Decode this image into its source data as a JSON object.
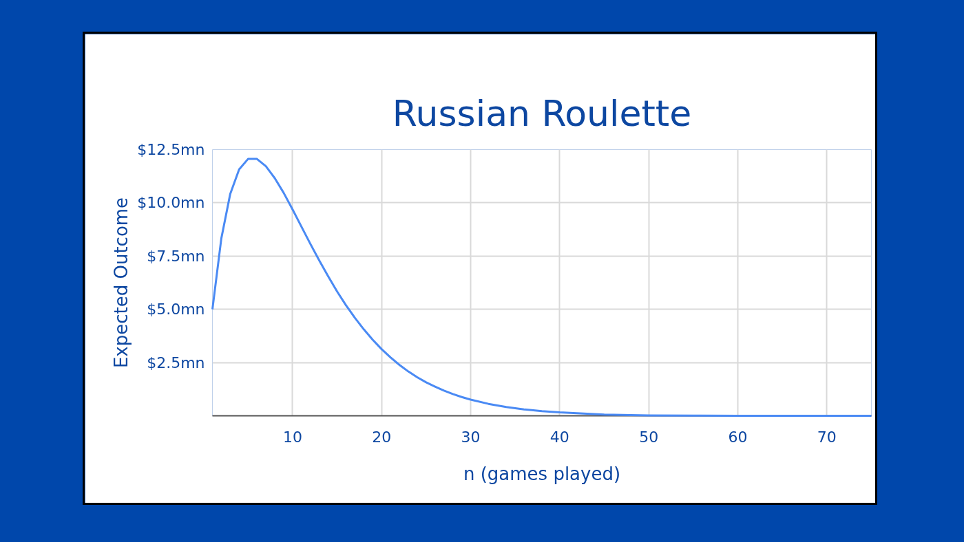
{
  "chart_data": {
    "type": "line",
    "title": "Russian Roulette",
    "xlabel": "n (games played)",
    "ylabel": "Expected Outcome",
    "x": [
      1,
      2,
      3,
      4,
      5,
      6,
      7,
      8,
      9,
      10,
      11,
      12,
      13,
      14,
      15,
      16,
      17,
      18,
      19,
      20,
      21,
      22,
      23,
      24,
      25,
      26,
      27,
      28,
      29,
      30,
      32,
      34,
      36,
      38,
      40,
      45,
      50,
      55,
      60,
      65,
      70,
      75
    ],
    "series": [
      {
        "color": "#4a8af4",
        "values": [
          5.0,
          8.33,
          10.42,
          11.57,
          12.06,
          12.06,
          11.72,
          11.16,
          10.47,
          9.69,
          8.88,
          8.07,
          7.29,
          6.55,
          5.84,
          5.19,
          4.6,
          4.06,
          3.57,
          3.13,
          2.74,
          2.39,
          2.08,
          1.81,
          1.57,
          1.37,
          1.18,
          1.02,
          0.88,
          0.76,
          0.56,
          0.41,
          0.3,
          0.22,
          0.16,
          0.06,
          0.02,
          0.01,
          0.0,
          0.0,
          0.0,
          0.0
        ]
      }
    ],
    "xlim": [
      1,
      75
    ],
    "ylim": [
      0,
      12.5
    ],
    "xticks": [
      10,
      20,
      30,
      40,
      50,
      60,
      70
    ],
    "yticks": [
      {
        "value": 2.5,
        "label": "$2.5mn"
      },
      {
        "value": 5,
        "label": "$5.0mn"
      },
      {
        "value": 7.5,
        "label": "$7.5mn"
      },
      {
        "value": 10,
        "label": "$10.0mn"
      },
      {
        "value": 12.5,
        "label": "$12.5mn"
      }
    ],
    "grid": true,
    "marker": "none",
    "line_style": "solid"
  }
}
